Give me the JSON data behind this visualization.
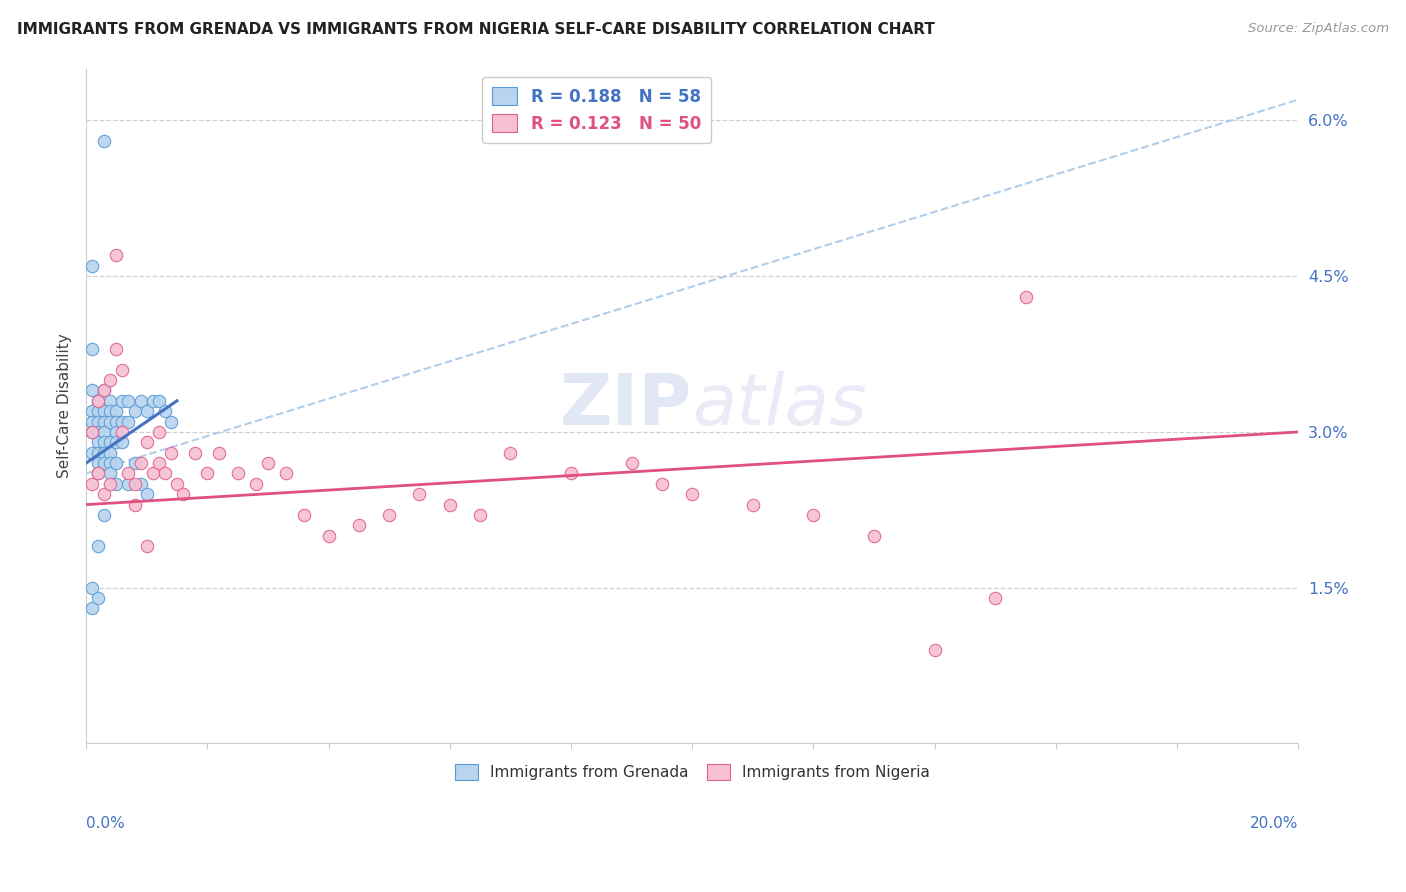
{
  "title": "IMMIGRANTS FROM GRENADA VS IMMIGRANTS FROM NIGERIA SELF-CARE DISABILITY CORRELATION CHART",
  "source": "Source: ZipAtlas.com",
  "ylabel": "Self-Care Disability",
  "right_yticks": [
    "6.0%",
    "4.5%",
    "3.0%",
    "1.5%"
  ],
  "right_ytick_vals": [
    0.06,
    0.045,
    0.03,
    0.015
  ],
  "color_grenada_fill": "#b8d4ee",
  "color_grenada_edge": "#5b9bd5",
  "color_nigeria_fill": "#f7c0d0",
  "color_nigeria_edge": "#e06090",
  "color_grenada_line": "#4472c4",
  "color_nigeria_line": "#e05080",
  "color_dashed": "#aac8e8",
  "title_color": "#222222",
  "source_color": "#999999",
  "axis_color": "#d0d0d0",
  "label_blue": "#4472c4",
  "xmin": 0.0,
  "xmax": 0.2,
  "ymin": 0.0,
  "ymax": 0.065,
  "grenada_x": [
    0.003,
    0.001,
    0.001,
    0.001,
    0.001,
    0.001,
    0.001,
    0.001,
    0.002,
    0.002,
    0.002,
    0.002,
    0.002,
    0.002,
    0.002,
    0.002,
    0.002,
    0.003,
    0.003,
    0.003,
    0.003,
    0.003,
    0.003,
    0.003,
    0.004,
    0.004,
    0.004,
    0.004,
    0.004,
    0.004,
    0.004,
    0.005,
    0.005,
    0.005,
    0.005,
    0.005,
    0.005,
    0.006,
    0.006,
    0.006,
    0.007,
    0.007,
    0.007,
    0.008,
    0.008,
    0.009,
    0.009,
    0.01,
    0.01,
    0.011,
    0.012,
    0.013,
    0.014,
    0.001,
    0.001,
    0.002,
    0.002,
    0.003
  ],
  "grenada_y": [
    0.058,
    0.046,
    0.038,
    0.034,
    0.032,
    0.031,
    0.03,
    0.028,
    0.033,
    0.032,
    0.031,
    0.03,
    0.03,
    0.029,
    0.028,
    0.027,
    0.026,
    0.034,
    0.032,
    0.031,
    0.03,
    0.029,
    0.028,
    0.027,
    0.033,
    0.032,
    0.031,
    0.029,
    0.028,
    0.027,
    0.026,
    0.032,
    0.031,
    0.03,
    0.029,
    0.027,
    0.025,
    0.033,
    0.031,
    0.029,
    0.033,
    0.031,
    0.025,
    0.032,
    0.027,
    0.033,
    0.025,
    0.032,
    0.024,
    0.033,
    0.033,
    0.032,
    0.031,
    0.015,
    0.013,
    0.019,
    0.014,
    0.022
  ],
  "nigeria_x": [
    0.001,
    0.001,
    0.002,
    0.002,
    0.003,
    0.003,
    0.004,
    0.004,
    0.005,
    0.005,
    0.006,
    0.006,
    0.007,
    0.008,
    0.008,
    0.009,
    0.01,
    0.011,
    0.012,
    0.012,
    0.013,
    0.014,
    0.015,
    0.016,
    0.018,
    0.02,
    0.022,
    0.025,
    0.028,
    0.03,
    0.033,
    0.036,
    0.04,
    0.045,
    0.05,
    0.055,
    0.06,
    0.065,
    0.07,
    0.08,
    0.09,
    0.095,
    0.1,
    0.11,
    0.12,
    0.13,
    0.14,
    0.15,
    0.155,
    0.01
  ],
  "nigeria_y": [
    0.03,
    0.025,
    0.033,
    0.026,
    0.034,
    0.024,
    0.035,
    0.025,
    0.047,
    0.038,
    0.036,
    0.03,
    0.026,
    0.025,
    0.023,
    0.027,
    0.029,
    0.026,
    0.03,
    0.027,
    0.026,
    0.028,
    0.025,
    0.024,
    0.028,
    0.026,
    0.028,
    0.026,
    0.025,
    0.027,
    0.026,
    0.022,
    0.02,
    0.021,
    0.022,
    0.024,
    0.023,
    0.022,
    0.028,
    0.026,
    0.027,
    0.025,
    0.024,
    0.023,
    0.022,
    0.02,
    0.009,
    0.014,
    0.043,
    0.019
  ],
  "grenada_line_x": [
    0.0,
    0.015
  ],
  "grenada_line_y": [
    0.027,
    0.033
  ],
  "nigeria_line_x": [
    0.0,
    0.2
  ],
  "nigeria_line_y": [
    0.023,
    0.03
  ],
  "dashed_line_x": [
    0.0,
    0.2
  ],
  "dashed_line_y": [
    0.026,
    0.062
  ]
}
